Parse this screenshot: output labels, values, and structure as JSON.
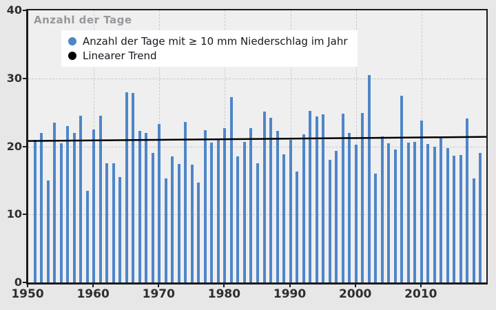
{
  "chart": {
    "title": "Anzahl der Tage",
    "legend": [
      {
        "label": "Anzahl der Tage mit ≥ 10 mm Niederschlag im Jahr",
        "color": "#4e86c8"
      },
      {
        "label": "Linearer Trend",
        "color": "#000000"
      }
    ]
  },
  "chart_data": {
    "type": "bar",
    "title": "Anzahl der Tage",
    "xlabel": "",
    "ylabel": "Anzahl der Tage",
    "xlim": [
      1950,
      2020
    ],
    "ylim": [
      0,
      40
    ],
    "yticks": [
      0,
      10,
      20,
      30,
      40
    ],
    "xticks": [
      1950,
      1960,
      1970,
      1980,
      1990,
      2000,
      2010
    ],
    "grid": true,
    "legend_position": "upper-left",
    "bar_color": "#4e86c8",
    "trend_color": "#000000",
    "x": [
      1951,
      1952,
      1953,
      1954,
      1955,
      1956,
      1957,
      1958,
      1959,
      1960,
      1961,
      1962,
      1963,
      1964,
      1965,
      1966,
      1967,
      1968,
      1969,
      1970,
      1971,
      1972,
      1973,
      1974,
      1975,
      1976,
      1977,
      1978,
      1979,
      1980,
      1981,
      1982,
      1983,
      1984,
      1985,
      1986,
      1987,
      1988,
      1989,
      1990,
      1991,
      1992,
      1993,
      1994,
      1995,
      1996,
      1997,
      1998,
      1999,
      2000,
      2001,
      2002,
      2003,
      2004,
      2005,
      2006,
      2007,
      2008,
      2009,
      2010,
      2011,
      2012,
      2013,
      2014,
      2015,
      2016,
      2017,
      2018,
      2019
    ],
    "values": [
      21.0,
      22.0,
      15.0,
      23.5,
      20.5,
      23.0,
      22.0,
      24.5,
      13.5,
      22.5,
      24.5,
      17.5,
      17.5,
      15.5,
      28.0,
      27.8,
      22.3,
      22.0,
      19.0,
      23.3,
      15.3,
      18.5,
      17.4,
      23.6,
      17.3,
      14.7,
      22.4,
      20.6,
      21.2,
      22.7,
      27.2,
      18.5,
      20.7,
      22.7,
      17.5,
      25.1,
      24.2,
      22.3,
      18.8,
      21.0,
      16.3,
      21.8,
      25.2,
      24.4,
      24.7,
      18.0,
      19.3,
      24.8,
      22.0,
      20.3,
      24.9,
      30.5,
      16.0,
      21.5,
      20.5,
      19.5,
      27.4,
      20.6,
      20.7,
      23.8,
      20.4,
      20.0,
      21.5,
      19.7,
      18.6,
      18.7,
      24.1,
      15.3,
      19.0
    ],
    "series": [
      {
        "name": "Anzahl der Tage mit ≥ 10 mm Niederschlag im Jahr",
        "type": "bar"
      },
      {
        "name": "Linearer Trend",
        "type": "line",
        "trend_start": {
          "x": 1950,
          "y": 20.8
        },
        "trend_end": {
          "x": 2020,
          "y": 21.4
        }
      }
    ]
  }
}
